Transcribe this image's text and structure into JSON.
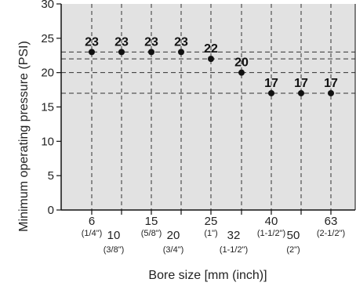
{
  "chart_data": {
    "type": "scatter",
    "xlabel": "Bore size [mm (inch)]",
    "ylabel": "Minimum operating pressure (PSI)",
    "ylim": [
      0,
      30
    ],
    "yticks": [
      "0",
      "5",
      "10",
      "15",
      "20",
      "25",
      "30"
    ],
    "grid": true,
    "categories": [
      {
        "mm": "6",
        "inch": "(1/4\")"
      },
      {
        "mm": "10",
        "inch": "(3/8\")"
      },
      {
        "mm": "15",
        "inch": "(5/8\")"
      },
      {
        "mm": "20",
        "inch": "(3/4\")"
      },
      {
        "mm": "25",
        "inch": "(1\")"
      },
      {
        "mm": "32",
        "inch": "(1-1/2\")"
      },
      {
        "mm": "40",
        "inch": "(1-1/2\")"
      },
      {
        "mm": "50",
        "inch": "(2\")"
      },
      {
        "mm": "63",
        "inch": "(2-1/2\")"
      }
    ],
    "values": [
      23,
      23,
      23,
      23,
      22,
      20,
      17,
      17,
      17
    ],
    "data_labels": [
      "23",
      "23",
      "23",
      "23",
      "22",
      "20",
      "17",
      "17",
      "17"
    ],
    "reference_lines": [
      23,
      22,
      20,
      17
    ],
    "colors": {
      "plot_bg": "#e2e2e2",
      "marker": "#111111",
      "grid": "#333333"
    }
  }
}
